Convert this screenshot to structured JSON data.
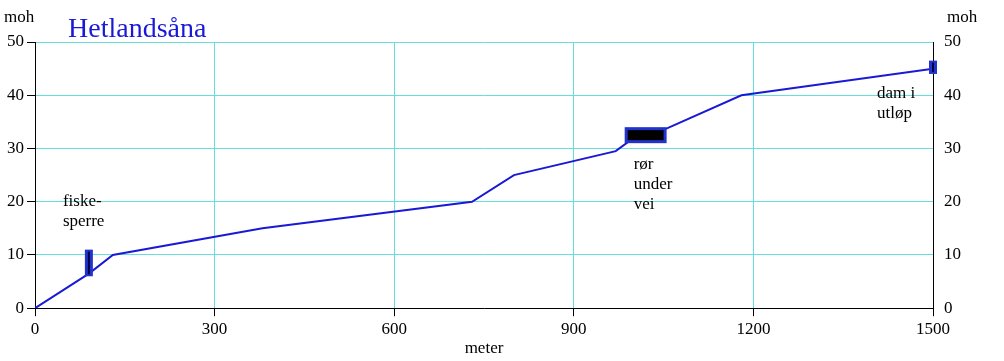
{
  "chart_data": {
    "type": "line",
    "title": "Hetlandsåna",
    "x_label": "meter",
    "y_label": "moh",
    "y2_label": "moh",
    "x": [
      0,
      90,
      130,
      380,
      730,
      800,
      970,
      1000,
      1050,
      1180,
      1500
    ],
    "series": [
      {
        "name": "Hetlandsåna",
        "color": "#1a1ad6",
        "values": [
          0,
          6.5,
          10,
          15,
          20,
          25,
          29.5,
          32,
          33.5,
          40,
          45
        ]
      }
    ],
    "xlim": [
      0,
      1500
    ],
    "xticks": [
      0,
      300,
      600,
      900,
      1200,
      1500
    ],
    "ylim": [
      0,
      50
    ],
    "yticks": [
      0,
      10,
      20,
      30,
      40,
      50
    ],
    "y2lim": [
      0,
      50
    ],
    "y2ticks": [
      0,
      10,
      20,
      30,
      40,
      50
    ],
    "grid": true,
    "annotations": [
      {
        "text": [
          "fiske-",
          "sperre"
        ],
        "x": 90,
        "y": [
          6,
          11
        ]
      },
      {
        "text": [
          "rør",
          "under",
          "vei"
        ],
        "x": [
          990,
          1050
        ],
        "y": 32.5
      },
      {
        "text": [
          "dam i",
          "utløp"
        ],
        "x": 1500,
        "y": [
          44,
          46.5
        ]
      }
    ]
  }
}
